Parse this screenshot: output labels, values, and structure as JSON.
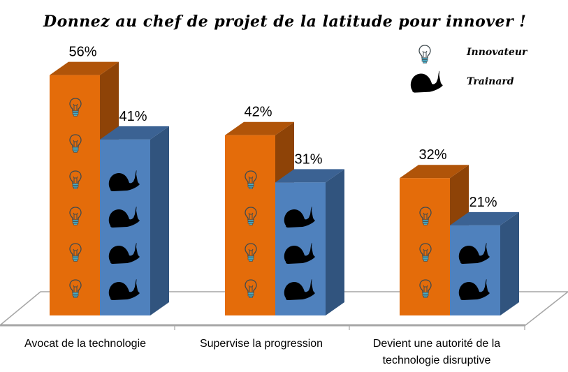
{
  "chart_data": {
    "type": "bar",
    "subtype": "3d-clustered-column-pictograph",
    "title": "Donnez au chef de projet de la latitude pour innover !",
    "xlabel": "",
    "ylabel": "",
    "ylim": [
      0,
      60
    ],
    "grid": false,
    "legend": "top-right",
    "categories": [
      [
        "Avocat de la technologie"
      ],
      [
        "Supervise la progression"
      ],
      [
        "Devient une autorité de la",
        "technologie disruptive"
      ]
    ],
    "series": [
      {
        "name": "Innovateur",
        "icon": "lightbulb-icon",
        "color": "#E46C0A",
        "top_color": "#B05409",
        "side_color": "#8E4307",
        "values": [
          56,
          42,
          32
        ],
        "labels": [
          "56%",
          "42%",
          "32%"
        ]
      },
      {
        "name": "Trainard",
        "icon": "snail-icon",
        "color": "#4F81BD",
        "top_color": "#3B6293",
        "side_color": "#31547E",
        "values": [
          41,
          31,
          21
        ],
        "labels": [
          "41%",
          "31%",
          "21%"
        ]
      }
    ]
  }
}
